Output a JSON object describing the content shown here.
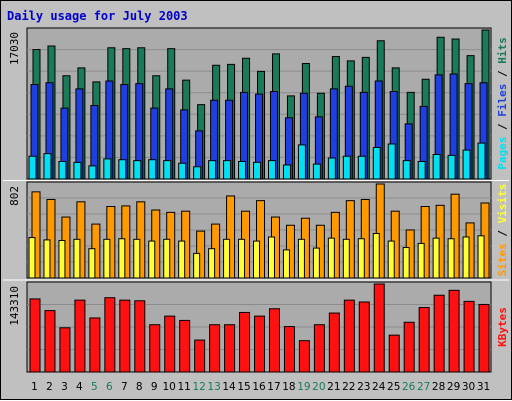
{
  "title": "Daily usage for July 2003",
  "colors": {
    "background": "#c0c0c0",
    "plot_bg": "#ababab",
    "grid": "#8c8c8c",
    "title": "#0000cc",
    "hits": "#1a7a5a",
    "files": "#1f3fe0",
    "pages": "#00e0f0",
    "visits": "#ffff33",
    "sites": "#ff9900",
    "kbytes": "#ff1111",
    "weekday_label": "#000000",
    "weekend_label": "#1a7a5a",
    "separator": "#ffffff"
  },
  "chart_data": [
    {
      "type": "bar",
      "panel": "top",
      "ymax_label": "17030",
      "ymax": 17030,
      "legend": [
        {
          "text": "Pages",
          "color": "#00e0f0"
        },
        {
          "text": " / ",
          "color": "#000000"
        },
        {
          "text": "Files",
          "color": "#1f3fe0"
        },
        {
          "text": " / ",
          "color": "#000000"
        },
        {
          "text": "Hits",
          "color": "#1a7a5a"
        }
      ],
      "categories": [
        "1",
        "2",
        "3",
        "4",
        "5",
        "6",
        "7",
        "8",
        "9",
        "10",
        "11",
        "12",
        "13",
        "14",
        "15",
        "16",
        "17",
        "18",
        "19",
        "20",
        "21",
        "22",
        "23",
        "24",
        "25",
        "26",
        "27",
        "28",
        "29",
        "30",
        "31"
      ],
      "weekend_days": [
        "5",
        "6",
        "12",
        "13",
        "19",
        "20",
        "26",
        "27"
      ],
      "series": [
        {
          "name": "Hits",
          "color": "#1a7a5a",
          "values": [
            14800,
            15200,
            11800,
            12700,
            11100,
            15000,
            14900,
            15000,
            11800,
            14900,
            11300,
            8500,
            13000,
            13100,
            13800,
            12300,
            14300,
            9500,
            13200,
            9800,
            14000,
            13500,
            13900,
            15800,
            12700,
            9900,
            11400,
            16200,
            16000,
            14100,
            17030
          ]
        },
        {
          "name": "Files",
          "color": "#1f3fe0",
          "values": [
            10800,
            11000,
            8100,
            10300,
            8400,
            11200,
            10800,
            10900,
            8100,
            10300,
            7900,
            5500,
            9000,
            9000,
            9900,
            9700,
            10000,
            7000,
            9800,
            7100,
            10300,
            10600,
            9900,
            11200,
            10000,
            6300,
            8300,
            11900,
            12000,
            10900,
            11000
          ]
        },
        {
          "name": "Pages",
          "color": "#00e0f0",
          "values": [
            2600,
            2900,
            2000,
            1900,
            1500,
            2300,
            2200,
            2100,
            2200,
            2100,
            1800,
            1400,
            2100,
            2100,
            2000,
            1900,
            2100,
            1600,
            3900,
            1700,
            2400,
            2600,
            2600,
            3600,
            4000,
            2100,
            2000,
            2800,
            2700,
            3300,
            4100
          ]
        }
      ]
    },
    {
      "type": "bar",
      "panel": "middle",
      "ymax_label": "802",
      "ymax": 802,
      "legend": [
        {
          "text": "Sites",
          "color": "#ff9900"
        },
        {
          "text": " / ",
          "color": "#000000"
        },
        {
          "text": "Visits",
          "color": "#ffff33"
        }
      ],
      "categories": [
        "1",
        "2",
        "3",
        "4",
        "5",
        "6",
        "7",
        "8",
        "9",
        "10",
        "11",
        "12",
        "13",
        "14",
        "15",
        "16",
        "17",
        "18",
        "19",
        "20",
        "21",
        "22",
        "23",
        "24",
        "25",
        "26",
        "27",
        "28",
        "29",
        "30",
        "31"
      ],
      "series": [
        {
          "name": "Sites",
          "color": "#ff9900",
          "values": [
            735,
            670,
            520,
            650,
            460,
            610,
            615,
            650,
            580,
            560,
            570,
            400,
            460,
            700,
            570,
            660,
            520,
            450,
            510,
            450,
            560,
            660,
            670,
            802,
            570,
            410,
            610,
            620,
            715,
            470,
            640
          ]
        },
        {
          "name": "Visits",
          "color": "#ffff33",
          "values": [
            345,
            325,
            320,
            330,
            250,
            330,
            335,
            330,
            315,
            330,
            315,
            210,
            250,
            330,
            330,
            315,
            350,
            240,
            330,
            255,
            340,
            330,
            335,
            380,
            315,
            260,
            295,
            340,
            335,
            350,
            360
          ]
        }
      ]
    },
    {
      "type": "bar",
      "panel": "bottom",
      "ymax_label": "143310",
      "ymax": 143310,
      "legend": [
        {
          "text": "KBytes",
          "color": "#ff1111"
        }
      ],
      "categories": [
        "1",
        "2",
        "3",
        "4",
        "5",
        "6",
        "7",
        "8",
        "9",
        "10",
        "11",
        "12",
        "13",
        "14",
        "15",
        "16",
        "17",
        "18",
        "19",
        "20",
        "21",
        "22",
        "23",
        "24",
        "25",
        "26",
        "27",
        "28",
        "29",
        "30",
        "31"
      ],
      "series": [
        {
          "name": "KBytes",
          "color": "#ff1111",
          "values": [
            119000,
            100000,
            72000,
            117000,
            88000,
            121000,
            117000,
            116000,
            77000,
            91000,
            84000,
            52000,
            77000,
            77000,
            97000,
            91000,
            103000,
            74000,
            51000,
            77000,
            96000,
            117000,
            114000,
            143310,
            60000,
            81000,
            105000,
            125000,
            133000,
            115000,
            110000
          ]
        }
      ]
    }
  ]
}
